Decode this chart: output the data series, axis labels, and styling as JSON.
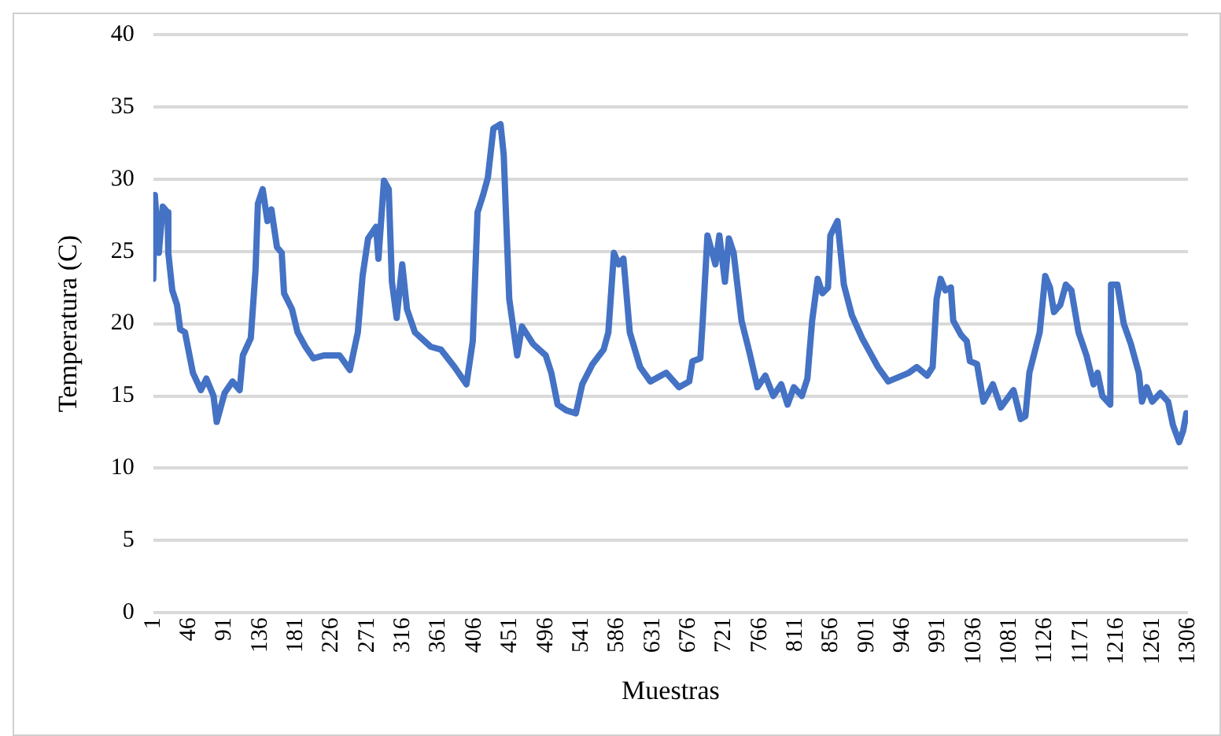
{
  "chart_data": {
    "type": "line",
    "xlabel": "Muestras",
    "ylabel": "Temperatura (C)",
    "xlim": [
      1,
      1306
    ],
    "xticks": [
      1,
      46,
      91,
      136,
      181,
      226,
      271,
      316,
      361,
      406,
      451,
      496,
      541,
      586,
      631,
      676,
      721,
      766,
      811,
      856,
      901,
      946,
      991,
      1036,
      1081,
      1126,
      1171,
      1216,
      1261,
      1306
    ],
    "ylim": [
      0,
      40
    ],
    "yticks": [
      0,
      5,
      10,
      15,
      20,
      25,
      30,
      35,
      40
    ],
    "grid": "y",
    "legend": false,
    "marker": "none",
    "line_style": "solid",
    "series": [
      {
        "color": "#4472c4",
        "x": [
          1,
          3,
          8,
          13,
          19,
          20,
          25,
          31,
          35,
          41,
          51,
          61,
          68,
          77,
          81,
          91,
          101,
          110,
          114,
          124,
          130,
          133,
          139,
          145,
          150,
          157,
          163,
          166,
          176,
          183,
          193,
          203,
          216,
          236,
          249,
          259,
          265,
          272,
          282,
          285,
          292,
          298,
          302,
          308,
          315,
          321,
          331,
          351,
          364,
          381,
          396,
          404,
          410,
          417,
          423,
          430,
          439,
          443,
          450,
          460,
          466,
          480,
          496,
          503,
          511,
          522,
          534,
          542,
          555,
          569,
          575,
          582,
          588,
          594,
          602,
          615,
          628,
          648,
          664,
          677,
          681,
          691,
          694,
          700,
          710,
          715,
          722,
          727,
          733,
          743,
          753,
          763,
          773,
          783,
          793,
          801,
          809,
          819,
          826,
          832,
          839,
          845,
          852,
          855,
          864,
          872,
          882,
          895,
          905,
          915,
          928,
          954,
          964,
          977,
          984,
          989,
          994,
          1000,
          1007,
          1010,
          1020,
          1027,
          1031,
          1040,
          1048,
          1060,
          1070,
          1086,
          1095,
          1101,
          1106,
          1119,
          1126,
          1132,
          1137,
          1145,
          1152,
          1159,
          1168,
          1178,
          1187,
          1192,
          1198,
          1208,
          1209,
          1217,
          1225,
          1234,
          1244,
          1248,
          1254,
          1261,
          1271,
          1281,
          1287,
          1295,
          1300,
          1304
        ],
        "values": [
          23.1,
          28.9,
          24.9,
          28.1,
          27.7,
          24.9,
          22.3,
          21.3,
          19.6,
          19.4,
          16.6,
          15.4,
          16.2,
          15.0,
          13.2,
          15.2,
          16.0,
          15.4,
          17.8,
          19.0,
          23.7,
          28.3,
          29.3,
          27.1,
          27.9,
          25.3,
          24.9,
          22.1,
          21.0,
          19.4,
          18.4,
          17.6,
          17.8,
          17.8,
          16.8,
          19.4,
          23.3,
          25.9,
          26.7,
          24.5,
          29.9,
          29.3,
          22.9,
          20.4,
          24.1,
          21.0,
          19.4,
          18.4,
          18.2,
          17.0,
          15.8,
          18.8,
          27.7,
          28.9,
          30.1,
          33.5,
          33.8,
          31.7,
          21.7,
          17.8,
          19.8,
          18.6,
          17.8,
          16.6,
          14.4,
          14.0,
          13.8,
          15.8,
          17.2,
          18.2,
          19.4,
          24.9,
          24.1,
          24.5,
          19.4,
          17.0,
          16.0,
          16.6,
          15.6,
          16.0,
          17.4,
          17.6,
          20.2,
          26.1,
          24.1,
          26.1,
          22.9,
          25.9,
          24.9,
          20.2,
          18.0,
          15.6,
          16.4,
          15.0,
          15.8,
          14.4,
          15.6,
          15.0,
          16.2,
          20.2,
          23.1,
          22.1,
          22.5,
          26.1,
          27.1,
          22.7,
          20.6,
          19.0,
          18.0,
          17.0,
          16.0,
          16.6,
          17.0,
          16.4,
          17.0,
          21.7,
          23.1,
          22.3,
          22.5,
          20.2,
          19.2,
          18.8,
          17.4,
          17.2,
          14.6,
          15.8,
          14.2,
          15.4,
          13.4,
          13.6,
          16.6,
          19.4,
          23.3,
          22.5,
          20.8,
          21.3,
          22.7,
          22.3,
          19.4,
          17.8,
          15.8,
          16.6,
          15.0,
          14.4,
          22.7,
          22.7,
          20.0,
          18.6,
          16.6,
          14.6,
          15.6,
          14.6,
          15.2,
          14.6,
          13.0,
          11.8,
          12.6,
          13.8
        ]
      }
    ]
  }
}
